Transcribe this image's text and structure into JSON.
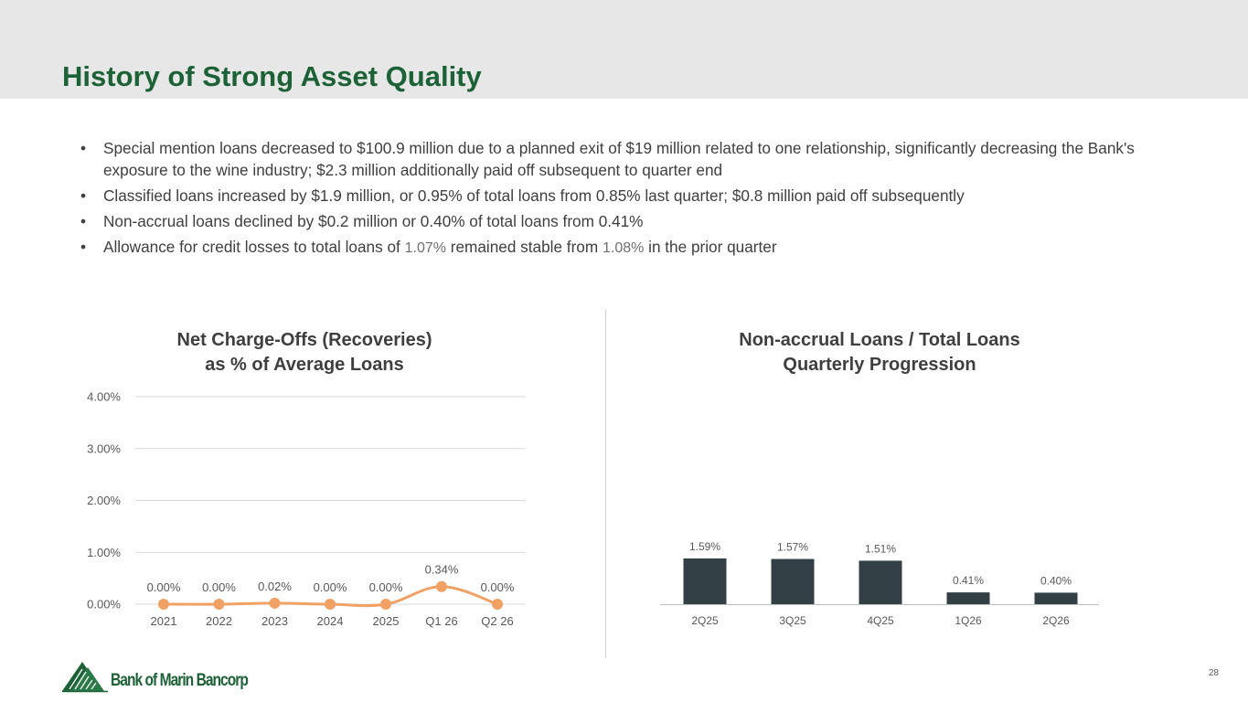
{
  "slide": {
    "title": "History of Strong Asset Quality",
    "page_number": "28"
  },
  "bullets": [
    {
      "bullet_char": "•",
      "text": "Special mention loans decreased to $100.9 million due to a planned exit of $19 million related to one relationship, significantly decreasing the Bank's exposure to the wine industry; $2.3 million additionally paid off subsequent to quarter end"
    },
    {
      "bullet_char": "•",
      "text": "Classified loans increased by $1.9 million, or 0.95% of total loans from 0.85% last quarter; $0.8 million paid off subsequently"
    },
    {
      "bullet_char": "•",
      "text": "Non-accrual loans declined by $0.2 million or 0.40% of total loans from 0.41%"
    },
    {
      "bullet_char": "•",
      "parts": [
        "Allowance for credit losses to total loans of ",
        "1.07%",
        " remained stable from ",
        "1.08%",
        " in the prior quarter"
      ]
    }
  ],
  "logo": {
    "text": "Bank of Marin Bancorp",
    "icon": "mountain-trees-icon"
  },
  "colors": {
    "title_green": "#1d6237",
    "line_orange": "#f2a164",
    "bar_dark": "#323f44",
    "header_gray": "#e7e7e7"
  },
  "chart_data": [
    {
      "type": "line",
      "title_lines": [
        "Net Charge-Offs (Recoveries)",
        "as % of Average Loans"
      ],
      "categories": [
        "2021",
        "2022",
        "2023",
        "2024",
        "2025",
        "Q1 26",
        "Q2 26"
      ],
      "values": [
        0.0,
        0.0,
        0.02,
        0.0,
        0.0,
        0.34,
        0.0
      ],
      "data_labels": [
        "0.00%",
        "0.00%",
        "0.02%",
        "0.00%",
        "0.00%",
        "0.34%",
        "0.00%"
      ],
      "yticks": [
        0,
        1,
        2,
        3,
        4
      ],
      "ytick_labels": [
        "0.00%",
        "1.00%",
        "2.00%",
        "3.00%",
        "4.00%"
      ],
      "ylim": [
        0,
        4
      ],
      "grid": true,
      "smooth": true,
      "color": "#f2a164"
    },
    {
      "type": "bar",
      "title_lines": [
        "Non-accrual Loans / Total Loans",
        "Quarterly Progression"
      ],
      "categories": [
        "2Q25",
        "3Q25",
        "4Q25",
        "1Q26",
        "2Q26"
      ],
      "values": [
        1.59,
        1.57,
        1.51,
        0.41,
        0.4
      ],
      "data_labels": [
        "1.59%",
        "1.57%",
        "1.51%",
        "0.41%",
        "0.40%"
      ],
      "grid": false,
      "color": "#323f44"
    }
  ]
}
